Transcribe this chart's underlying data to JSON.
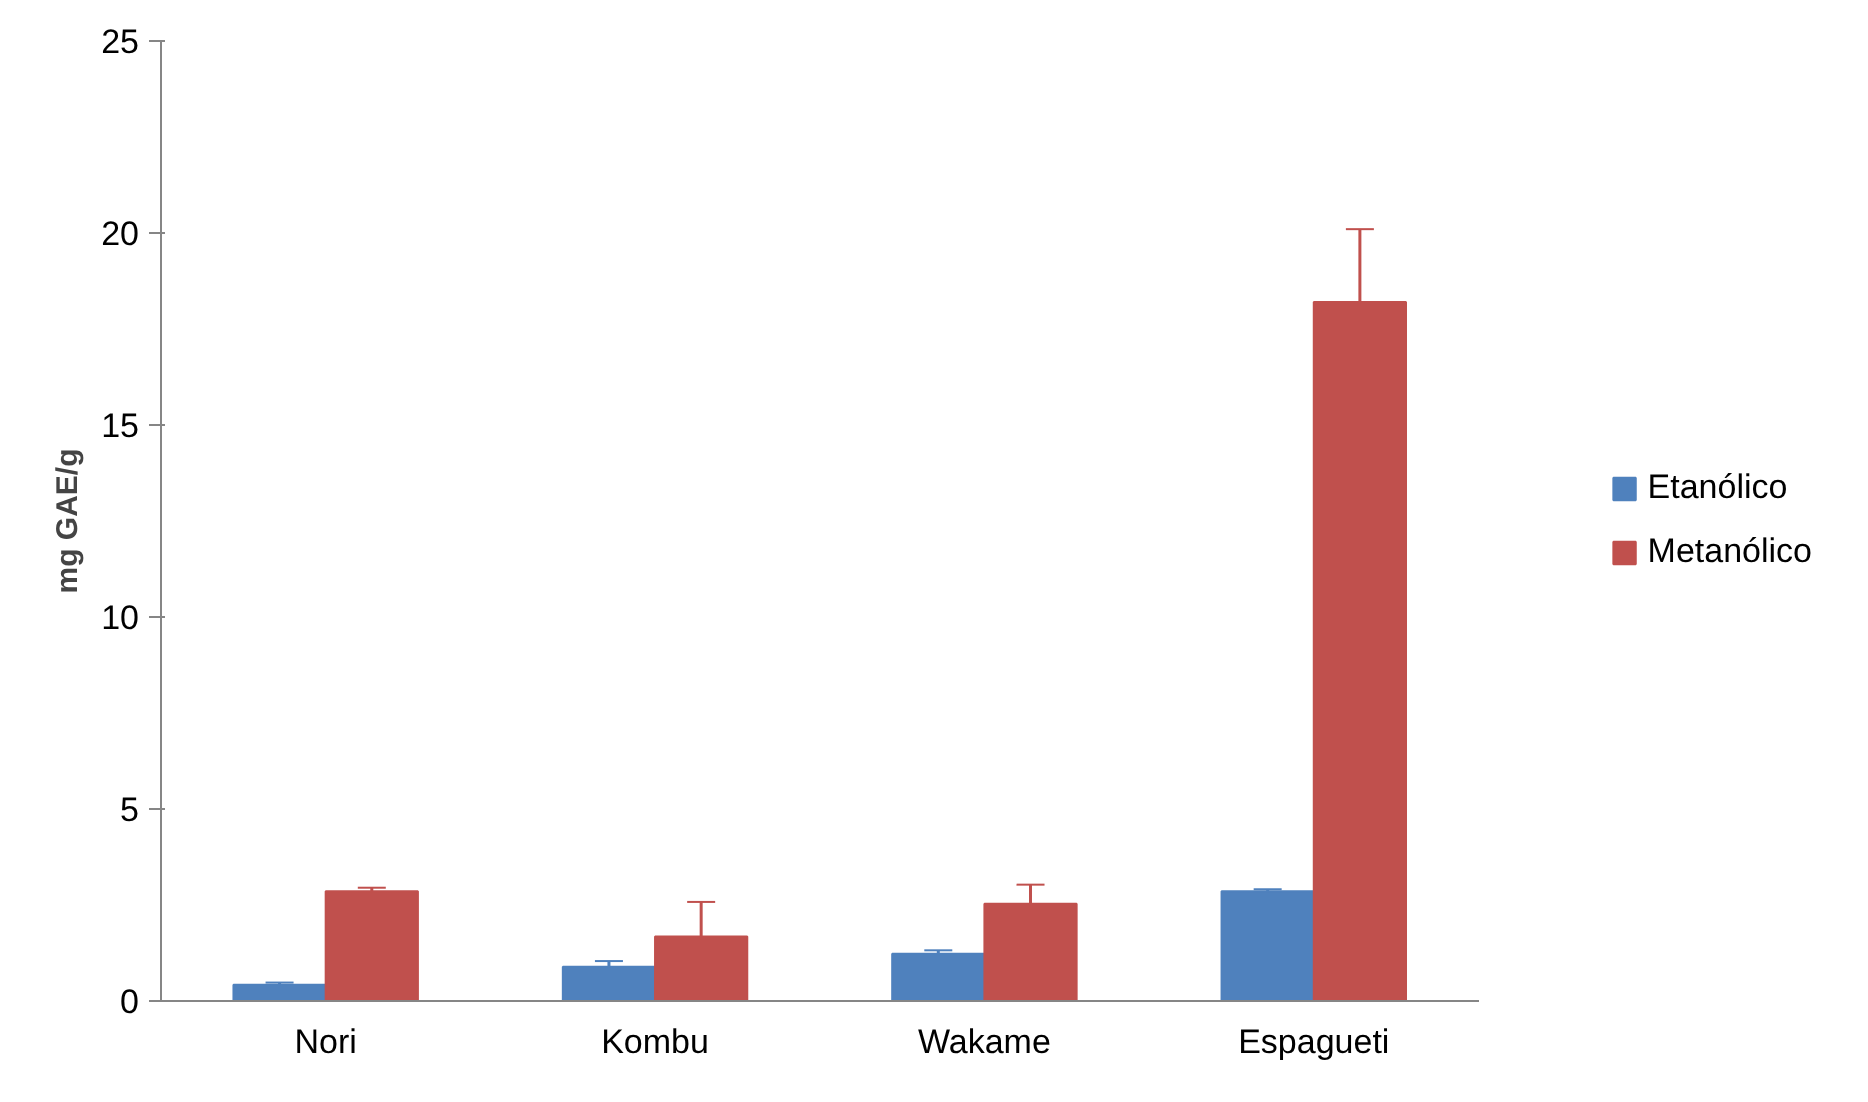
{
  "chart_data": {
    "type": "bar",
    "ylabel": "mg GAE/g",
    "categories": [
      "Nori",
      "Kombu",
      "Wakame",
      "Espagueti"
    ],
    "series": [
      {
        "name": "Etanólico",
        "color": "#4f81bd",
        "values": [
          0.42,
          0.89,
          1.23,
          2.86
        ],
        "errors": [
          0.06,
          0.15,
          0.09,
          0.05
        ]
      },
      {
        "name": "Metanólico",
        "color": "#c0504d",
        "values": [
          2.86,
          1.68,
          2.53,
          18.2
        ],
        "errors": [
          0.09,
          0.9,
          0.5,
          1.9
        ]
      }
    ],
    "ylim": [
      0,
      25
    ],
    "yticks": [
      0,
      5,
      10,
      15,
      20,
      25
    ],
    "grid": false,
    "legend": "right"
  }
}
